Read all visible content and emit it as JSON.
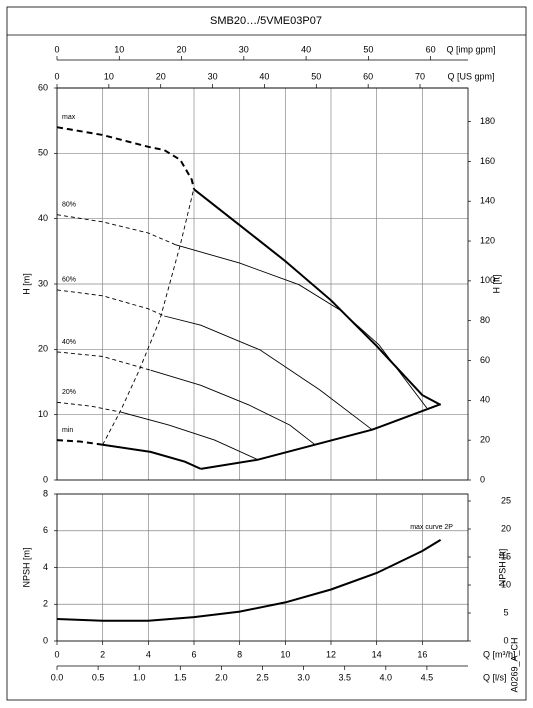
{
  "title": "SMB20…/5VME03P07",
  "chart_data": [
    {
      "type": "line",
      "xlim": [
        0,
        18
      ],
      "ylim": [
        0,
        60
      ],
      "yticks": [
        0,
        10,
        20,
        30,
        40,
        50,
        60
      ],
      "ylabel": "H [m]",
      "y2lim": [
        0,
        196.85
      ],
      "y2ticks": [
        0,
        20,
        40,
        60,
        80,
        100,
        120,
        140,
        160,
        180
      ],
      "y2label": "H [ft]",
      "grid": true,
      "top_axes": [
        {
          "label": "Q [imp gpm]",
          "xlim": [
            0,
            66
          ],
          "xticks": [
            0,
            10,
            20,
            30,
            40,
            50,
            60
          ]
        },
        {
          "label": "Q [US gpm]",
          "xlim": [
            0,
            79.25
          ],
          "xticks": [
            0,
            10,
            20,
            30,
            40,
            50,
            60,
            70
          ]
        }
      ],
      "series": [
        {
          "name": "max",
          "color": "#000000",
          "segments": [
            {
              "style": "dashed",
              "width": "thick",
              "x": [
                0,
                2,
                4,
                4.7,
                5.4,
                5.9,
                6
              ],
              "values": [
                54,
                52.8,
                51,
                50.5,
                49,
                46,
                44.5
              ]
            },
            {
              "style": "solid",
              "width": "thick",
              "x": [
                6,
                8,
                10,
                12,
                14,
                16,
                16.8
              ],
              "values": [
                44.5,
                39,
                33.5,
                27.5,
                20.5,
                13,
                11.5
              ]
            }
          ]
        },
        {
          "name": "80%",
          "color": "#000000",
          "segments": [
            {
              "style": "dashed",
              "width": "thin",
              "x": [
                0,
                2,
                4,
                5.2
              ],
              "values": [
                40.6,
                39.5,
                37.8,
                36
              ]
            },
            {
              "style": "solid",
              "width": "thin",
              "x": [
                5.2,
                8,
                10.6,
                12.4,
                14.1,
                16.2
              ],
              "values": [
                36,
                33.2,
                29.9,
                26,
                20.7,
                11
              ]
            }
          ]
        },
        {
          "name": "60%",
          "color": "#000000",
          "segments": [
            {
              "style": "dashed",
              "width": "thin",
              "x": [
                0,
                2,
                4,
                4.7
              ],
              "values": [
                29.1,
                28.2,
                26.2,
                25.1
              ]
            },
            {
              "style": "solid",
              "width": "thin",
              "x": [
                4.7,
                6.3,
                8.9,
                11.5,
                13.8
              ],
              "values": [
                25.1,
                23.7,
                19.9,
                13.8,
                7.7
              ]
            }
          ]
        },
        {
          "name": "40%",
          "color": "#000000",
          "segments": [
            {
              "style": "dashed",
              "width": "thin",
              "x": [
                0,
                2,
                4.1
              ],
              "values": [
                19.6,
                18.9,
                16.8
              ]
            },
            {
              "style": "solid",
              "width": "thin",
              "x": [
                4.1,
                6.3,
                8.4,
                10.2,
                11.3
              ],
              "values": [
                16.8,
                14.5,
                11.5,
                8.4,
                5.4
              ]
            }
          ]
        },
        {
          "name": "20%",
          "color": "#000000",
          "segments": [
            {
              "style": "dashed",
              "width": "thin",
              "x": [
                0,
                1.5,
                2.8
              ],
              "values": [
                11.9,
                11.3,
                10.4
              ]
            },
            {
              "style": "solid",
              "width": "thin",
              "x": [
                2.8,
                4.9,
                6.9,
                8.8
              ],
              "values": [
                10.4,
                8.4,
                6.1,
                3.1
              ]
            }
          ]
        },
        {
          "name": "min",
          "color": "#000000",
          "segments": [
            {
              "style": "dashed",
              "width": "thick",
              "x": [
                0,
                1,
                2
              ],
              "values": [
                6.1,
                5.9,
                5.4
              ]
            },
            {
              "style": "solid",
              "width": "thick",
              "x": [
                2,
                4.1,
                5.6,
                6.3
              ],
              "values": [
                5.4,
                4.3,
                2.8,
                1.7
              ]
            }
          ]
        },
        {
          "color": "#000000",
          "segments": [
            {
              "style": "dashed",
              "width": "thin",
              "x": [
                2,
                2.8,
                3.6,
                4.5,
                5.4,
                6
              ],
              "values": [
                5.4,
                10.7,
                16.8,
                24.5,
                36,
                44.7
              ]
            }
          ]
        },
        {
          "color": "#000000",
          "segments": [
            {
              "style": "solid",
              "width": "thick",
              "x": [
                6.3,
                8.8,
                11.3,
                13.8,
                16.8
              ],
              "values": [
                1.7,
                3.1,
                5.4,
                7.7,
                11.6
              ]
            }
          ]
        }
      ]
    },
    {
      "type": "line",
      "xlim": [
        0,
        18
      ],
      "xticks": [
        0,
        2,
        4,
        6,
        8,
        10,
        12,
        14,
        16
      ],
      "xlabel": "Q [m³/h]",
      "x2": {
        "label": "Q [l/s]",
        "xlim": [
          0,
          5
        ],
        "xticks": [
          {
            "value": 0,
            "label": "0.0"
          },
          0.5,
          {
            "value": 1,
            "label": "1.0"
          },
          1.5,
          {
            "value": 2,
            "label": "2.0"
          },
          2.5,
          {
            "value": 3,
            "label": "3.0"
          },
          3.5,
          {
            "value": 4,
            "label": "4.0"
          },
          4.5
        ]
      },
      "ylim": [
        0,
        8
      ],
      "yticks": [
        0,
        2,
        4,
        6,
        8
      ],
      "ylabel": "NPSH [m]",
      "y2lim": [
        0,
        26.25
      ],
      "y2ticks": [
        0,
        5,
        10,
        15,
        20,
        25
      ],
      "y2label": "NPSH [ft]",
      "grid": true,
      "series": [
        {
          "name": "max curve 2P",
          "color": "#000000",
          "segments": [
            {
              "style": "solid",
              "width": "thick",
              "x": [
                0,
                2,
                4,
                6,
                8,
                10,
                12,
                14,
                16,
                16.8
              ],
              "values": [
                1.2,
                1.1,
                1.1,
                1.3,
                1.6,
                2.1,
                2.8,
                3.7,
                4.9,
                5.5
              ]
            }
          ]
        }
      ]
    }
  ],
  "code": "A0269_A_CH"
}
